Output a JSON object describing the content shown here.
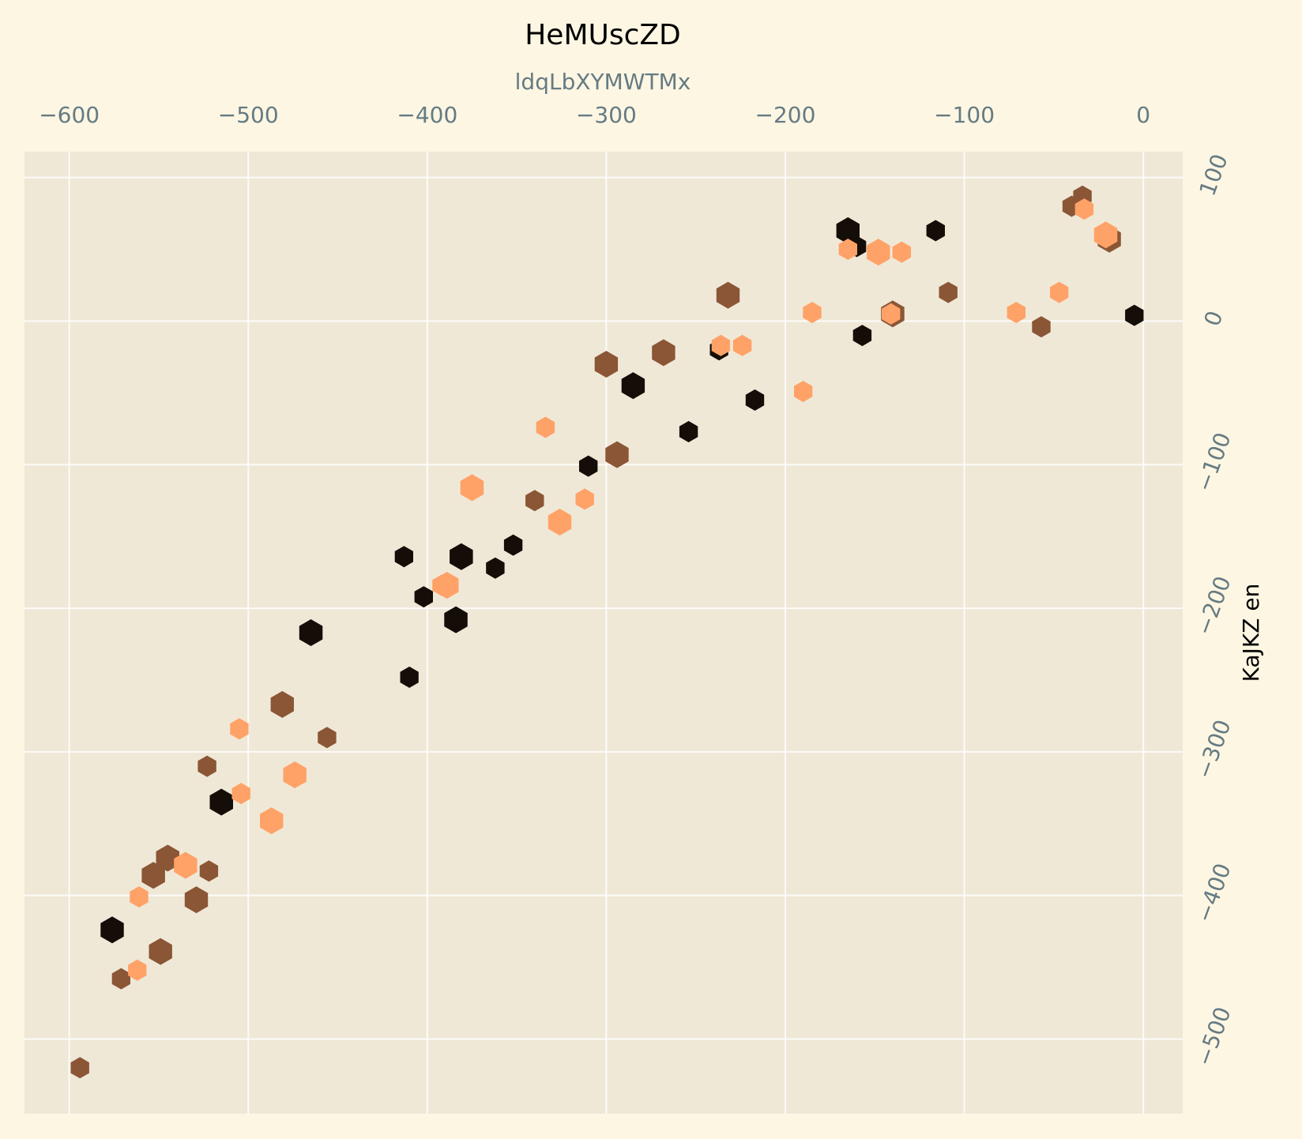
{
  "chart_data": {
    "type": "scatter",
    "marker": "hexagon",
    "title": "HeMUscZD",
    "xlabel": "ldqLbXYMWTMx",
    "ylabel": "KaJKZ en",
    "xlim": [
      -625,
      22
    ],
    "ylim": [
      -552,
      118
    ],
    "x_axis_position": "top",
    "y_axis_position": "right",
    "grid": true,
    "x_ticks": [
      -600,
      -500,
      -400,
      -300,
      -200,
      -100,
      0
    ],
    "y_ticks": [
      100,
      0,
      -100,
      -200,
      -300,
      -400,
      -500
    ],
    "x_tick_labels": [
      "−600",
      "−500",
      "−400",
      "−300",
      "−200",
      "−100",
      "0"
    ],
    "y_tick_labels": [
      "100",
      "0",
      "−100",
      "−200",
      "−300",
      "−400",
      "−500"
    ],
    "colors": {
      "background": "#fdf6e3",
      "plot_area": "#efe8d7",
      "series": [
        "#150d07",
        "#8b5636",
        "#ffa268"
      ]
    },
    "series": [
      {
        "color": "#150d07",
        "points": [
          {
            "x": -165,
            "y": 63,
            "s": "l"
          },
          {
            "x": -160,
            "y": 52,
            "s": "m"
          },
          {
            "x": -116,
            "y": 63,
            "s": "m"
          },
          {
            "x": -5,
            "y": 4,
            "s": "m"
          },
          {
            "x": -157,
            "y": -10,
            "s": "m"
          },
          {
            "x": -237,
            "y": -20,
            "s": "m"
          },
          {
            "x": -285,
            "y": -45,
            "s": "l"
          },
          {
            "x": -217,
            "y": -55,
            "s": "m"
          },
          {
            "x": -254,
            "y": -77,
            "s": "m"
          },
          {
            "x": -310,
            "y": -101,
            "s": "m"
          },
          {
            "x": -352,
            "y": -156,
            "s": "m"
          },
          {
            "x": -381,
            "y": -164,
            "s": "l"
          },
          {
            "x": -413,
            "y": -164,
            "s": "m"
          },
          {
            "x": -362,
            "y": -172,
            "s": "m"
          },
          {
            "x": -402,
            "y": -192,
            "s": "m"
          },
          {
            "x": -384,
            "y": -208,
            "s": "l"
          },
          {
            "x": -465,
            "y": -217,
            "s": "l"
          },
          {
            "x": -410,
            "y": -248,
            "s": "m"
          },
          {
            "x": -515,
            "y": -335,
            "s": "l"
          },
          {
            "x": -576,
            "y": -424,
            "s": "l"
          }
        ]
      },
      {
        "color": "#8b5636",
        "points": [
          {
            "x": -34,
            "y": 87,
            "s": "m"
          },
          {
            "x": -40,
            "y": 80,
            "s": "m"
          },
          {
            "x": -19,
            "y": 57,
            "s": "l"
          },
          {
            "x": -232,
            "y": 18,
            "s": "l"
          },
          {
            "x": -109,
            "y": 20,
            "s": "m"
          },
          {
            "x": -140,
            "y": 5,
            "s": "l"
          },
          {
            "x": -57,
            "y": -4,
            "s": "m"
          },
          {
            "x": -268,
            "y": -22,
            "s": "l"
          },
          {
            "x": -300,
            "y": -30,
            "s": "l"
          },
          {
            "x": -294,
            "y": -93,
            "s": "l"
          },
          {
            "x": -340,
            "y": -125,
            "s": "m"
          },
          {
            "x": -481,
            "y": -267,
            "s": "l"
          },
          {
            "x": -456,
            "y": -290,
            "s": "m"
          },
          {
            "x": -523,
            "y": -310,
            "s": "m"
          },
          {
            "x": -545,
            "y": -374,
            "s": "l"
          },
          {
            "x": -553,
            "y": -386,
            "s": "l"
          },
          {
            "x": -522,
            "y": -383,
            "s": "m"
          },
          {
            "x": -529,
            "y": -403,
            "s": "l"
          },
          {
            "x": -549,
            "y": -439,
            "s": "l"
          },
          {
            "x": -571,
            "y": -458,
            "s": "m"
          },
          {
            "x": -594,
            "y": -520,
            "s": "m"
          }
        ]
      },
      {
        "color": "#ffa268",
        "points": [
          {
            "x": -33,
            "y": 78,
            "s": "m"
          },
          {
            "x": -21,
            "y": 60,
            "s": "l"
          },
          {
            "x": -165,
            "y": 50,
            "s": "m"
          },
          {
            "x": -148,
            "y": 48,
            "s": "l"
          },
          {
            "x": -135,
            "y": 48,
            "s": "m"
          },
          {
            "x": -47,
            "y": 20,
            "s": "m"
          },
          {
            "x": -185,
            "y": 6,
            "s": "m"
          },
          {
            "x": -141,
            "y": 5,
            "s": "m"
          },
          {
            "x": -71,
            "y": 6,
            "s": "m"
          },
          {
            "x": -236,
            "y": -17,
            "s": "m"
          },
          {
            "x": -224,
            "y": -17,
            "s": "m"
          },
          {
            "x": -190,
            "y": -49,
            "s": "m"
          },
          {
            "x": -334,
            "y": -74,
            "s": "m"
          },
          {
            "x": -375,
            "y": -116,
            "s": "l"
          },
          {
            "x": -312,
            "y": -124,
            "s": "m"
          },
          {
            "x": -326,
            "y": -140,
            "s": "l"
          },
          {
            "x": -389,
            "y": -184,
            "s": "l"
          },
          {
            "x": -392,
            "y": -184,
            "s": "m"
          },
          {
            "x": -505,
            "y": -284,
            "s": "m"
          },
          {
            "x": -474,
            "y": -316,
            "s": "l"
          },
          {
            "x": -504,
            "y": -329,
            "s": "m"
          },
          {
            "x": -487,
            "y": -348,
            "s": "l"
          },
          {
            "x": -535,
            "y": -379,
            "s": "l"
          },
          {
            "x": -561,
            "y": -401,
            "s": "m"
          },
          {
            "x": -562,
            "y": -452,
            "s": "m"
          }
        ]
      }
    ]
  }
}
